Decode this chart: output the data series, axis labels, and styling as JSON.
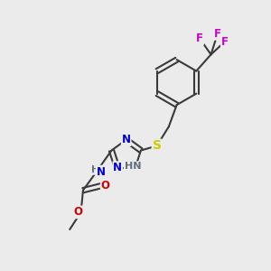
{
  "background_color": "#ebebeb",
  "bond_color": "#3a3a3a",
  "bond_width": 1.5,
  "atom_colors": {
    "N_blue": "#0000cc",
    "N_gray": "#607080",
    "S": "#cccc00",
    "O_red": "#cc0000",
    "F_magenta": "#cc00cc",
    "C": "#3a3a3a"
  },
  "font_size_atom": 8.5,
  "figsize": [
    3.0,
    3.0
  ],
  "dpi": 100,
  "xlim": [
    0,
    10
  ],
  "ylim": [
    0,
    10
  ]
}
